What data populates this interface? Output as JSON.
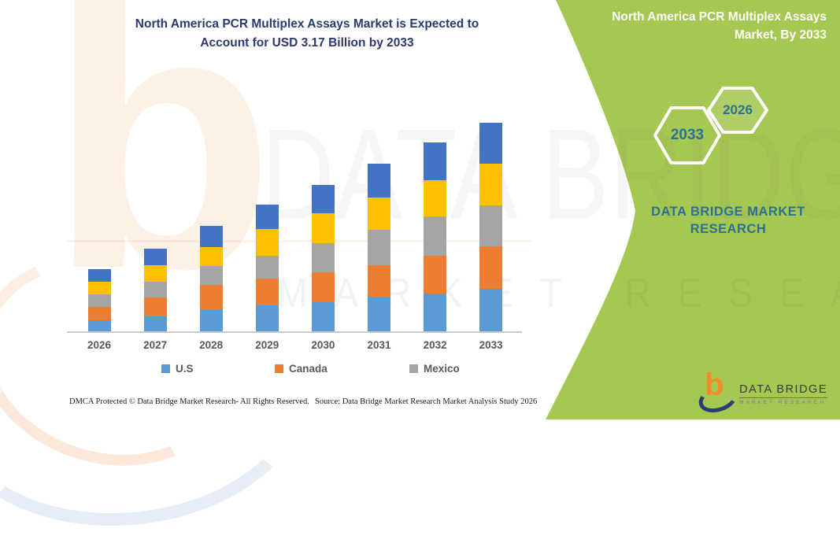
{
  "title": {
    "line1": "North America PCR Multiplex Assays Market is Expected to",
    "line2": "Account for USD 3.17 Billion by 2033"
  },
  "side_panel": {
    "title_line1": "North America PCR Multiplex Assays",
    "title_line2": "Market, By 2033",
    "hex_large_year": "2033",
    "hex_small_year": "2026",
    "brand_line1": "DATA BRIDGE MARKET",
    "brand_line2": "RESEARCH",
    "green_color": "#a5c852",
    "hex_text_color": "#2c7093"
  },
  "watermark": {
    "letter": "b",
    "main": "DATA BRIDGE",
    "sub": "MARKET RESEARCH"
  },
  "legend": [
    {
      "label": "U.S",
      "color": "#5B9BD5"
    },
    {
      "label": "Canada",
      "color": "#ED7D31"
    },
    {
      "label": "Mexico",
      "color": "#A5A5A5"
    }
  ],
  "footer": {
    "dmca": "DMCA Protected © Data Bridge Market Research-  All Rights Reserved.",
    "source": "Source: Data Bridge Market Research  Market Analysis Study 2026"
  },
  "logo": {
    "mark": "b",
    "name": "DATA BRIDGE",
    "subtitle": "MARKET RESEARCH"
  },
  "chart_data": {
    "type": "bar",
    "stacked": true,
    "title": "North America PCR Multiplex Assays Market is Expected to Account for USD 3.17 Billion by 2033",
    "value_unit": "USD Billion",
    "categories": [
      "2026",
      "2027",
      "2028",
      "2029",
      "2030",
      "2031",
      "2032",
      "2033"
    ],
    "series": [
      {
        "name": "U.S",
        "color": "#5B9BD5",
        "values": [
          0.17,
          0.23,
          0.33,
          0.39,
          0.44,
          0.53,
          0.57,
          0.65
        ]
      },
      {
        "name": "Canada",
        "color": "#ED7D31",
        "values": [
          0.2,
          0.29,
          0.38,
          0.41,
          0.46,
          0.48,
          0.58,
          0.64
        ]
      },
      {
        "name": "Mexico",
        "color": "#A5A5A5",
        "values": [
          0.19,
          0.24,
          0.28,
          0.35,
          0.44,
          0.53,
          0.6,
          0.63
        ]
      },
      {
        "name": "",
        "color": "#FFC000",
        "values": [
          0.19,
          0.25,
          0.29,
          0.4,
          0.45,
          0.49,
          0.55,
          0.63
        ]
      },
      {
        "name": "",
        "color": "#4472C4",
        "values": [
          0.2,
          0.25,
          0.32,
          0.38,
          0.43,
          0.52,
          0.57,
          0.62
        ]
      }
    ],
    "totals": [
      0.95,
      1.26,
      1.6,
      1.93,
      2.22,
      2.55,
      2.87,
      3.17
    ],
    "ylim": [
      0,
      3.4
    ],
    "grid": false,
    "y_axis_visible": false,
    "legend_position": "bottom",
    "legend_visible_labels": [
      "U.S",
      "Canada",
      "Mexico"
    ],
    "note": "top two stacked series (yellow, dark blue) have no visible legend label in the image"
  }
}
